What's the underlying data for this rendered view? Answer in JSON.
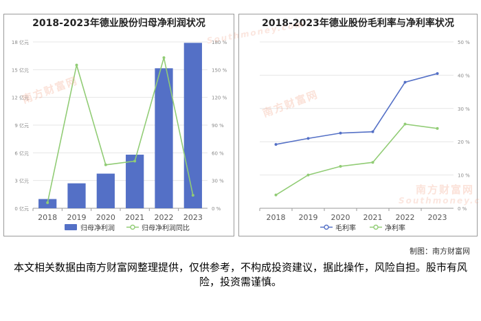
{
  "chart_data": [
    {
      "type": "bar",
      "title": "2018-2023年德业股份归母净利润状况",
      "categories": [
        "2018",
        "2019",
        "2020",
        "2021",
        "2022",
        "2023"
      ],
      "series": [
        {
          "name": "归母净利润",
          "type": "bar",
          "axis": "left",
          "values": [
            1.0,
            2.7,
            3.75,
            5.8,
            15.15,
            17.9
          ]
        },
        {
          "name": "归母净利润同比",
          "type": "line",
          "axis": "right",
          "values": [
            6,
            155,
            47,
            51,
            163,
            14
          ]
        }
      ],
      "y_left": {
        "ticks": [
          "0 亿元",
          "3 亿元",
          "6 亿元",
          "9 亿元",
          "12 亿元",
          "15 亿元",
          "18 亿元"
        ],
        "range": [
          0,
          18
        ]
      },
      "y_right": {
        "ticks": [
          "0 %",
          "30 %",
          "60 %",
          "90 %",
          "120 %",
          "150 %",
          "180 %"
        ],
        "range": [
          0,
          180
        ]
      },
      "colors": {
        "bar": "#5470c6",
        "line": "#91cc75"
      },
      "grid": true,
      "legend_position": "bottom"
    },
    {
      "type": "line",
      "title": "2018-2023年德业股份毛利率与净利率状况",
      "categories": [
        "2018",
        "2019",
        "2020",
        "2021",
        "2022",
        "2023"
      ],
      "series": [
        {
          "name": "毛利率",
          "values": [
            19.2,
            21.0,
            22.6,
            23.0,
            37.9,
            40.5
          ]
        },
        {
          "name": "净利率",
          "values": [
            4.0,
            10.0,
            12.6,
            13.8,
            25.3,
            24.0
          ]
        }
      ],
      "y_right": {
        "ticks": [
          "0 %",
          "10 %",
          "20 %",
          "30 %",
          "40 %",
          "50 %"
        ],
        "range": [
          0,
          50
        ]
      },
      "colors": {
        "毛利率": "#5470c6",
        "净利率": "#91cc75"
      },
      "grid": true,
      "legend_position": "bottom"
    }
  ],
  "watermark": {
    "brand": "南方财富网",
    "domain": "Southmoney.com"
  },
  "credit": "制图：南方财富网",
  "disclaimer": "本文相关数据由南方财富网整理提供，仅供参考，不构成投资建议，据此操作，风险自担。股市有风险，投资需谨慎。"
}
